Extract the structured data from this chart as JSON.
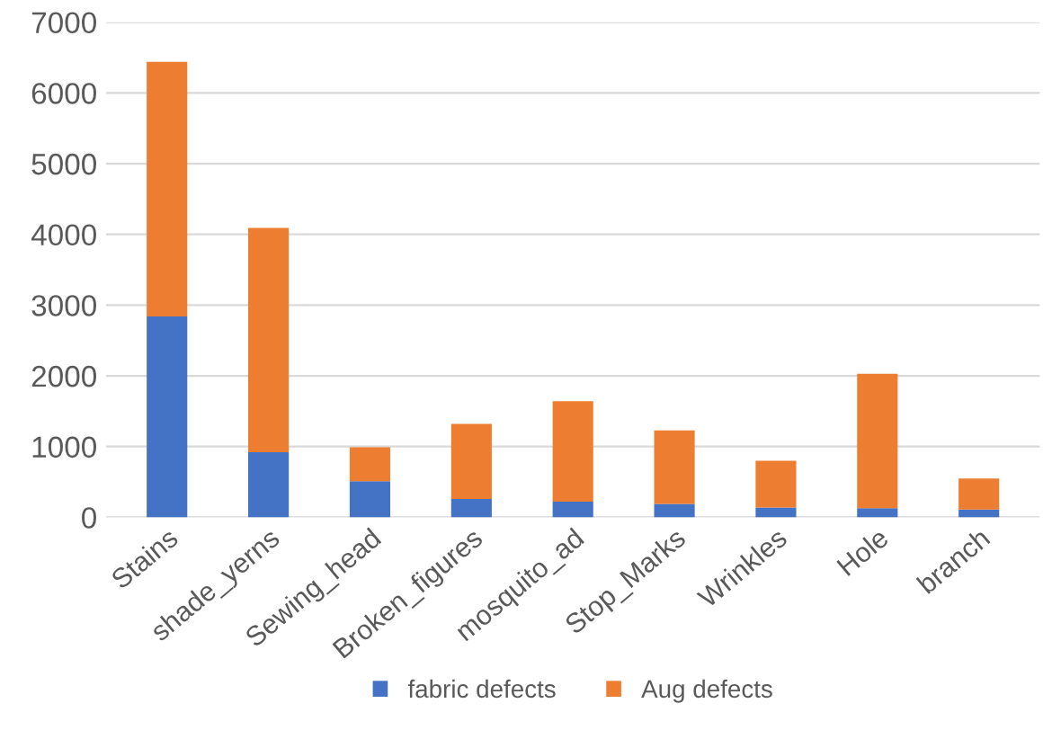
{
  "chart_data": {
    "type": "bar",
    "stacked": true,
    "categories": [
      "Stains",
      "shade_yerns",
      "Sewing_head",
      "Broken_figures",
      "mosquito_ad",
      "Stop_Marks",
      "Wrinkles",
      "Hole",
      "branch"
    ],
    "series": [
      {
        "name": "fabric defects",
        "color": "#4472c4",
        "values": [
          2840,
          920,
          510,
          260,
          220,
          190,
          140,
          130,
          110
        ]
      },
      {
        "name": "Aug defects",
        "color": "#ed7d31",
        "values": [
          3600,
          3170,
          480,
          1060,
          1420,
          1040,
          660,
          1900,
          440
        ]
      }
    ],
    "ylim": [
      0,
      7000
    ],
    "yticks": [
      0,
      1000,
      2000,
      3000,
      4000,
      5000,
      6000,
      7000
    ],
    "grid": "y",
    "legend": "bottom"
  }
}
